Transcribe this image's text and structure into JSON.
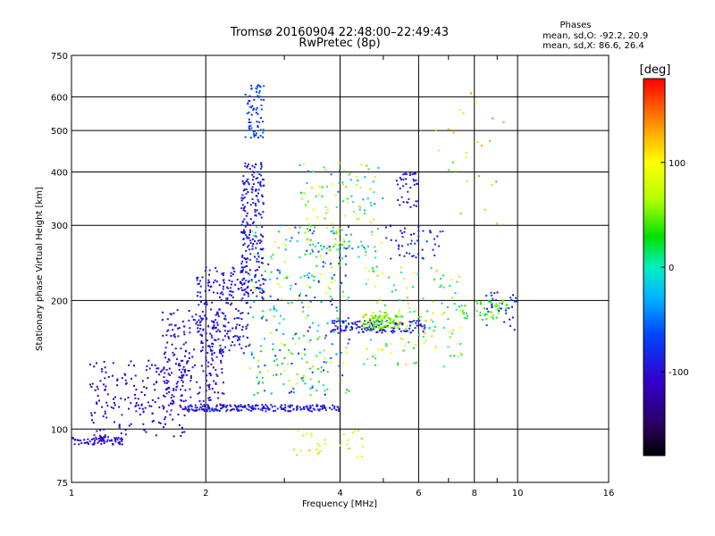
{
  "header": {
    "title_line1": "Tromsø 20160904 22:48:00–22:49:43",
    "title_line2": "RwPretec (8p)"
  },
  "stats": {
    "title": "Phases",
    "line_o": "mean, sd,O: -92.2, 20.9",
    "line_x": "mean, sd,X:  86.6, 26.4"
  },
  "colorbar": {
    "label": "[deg]",
    "range": [
      -180,
      180
    ],
    "ticks": [
      {
        "value": 100,
        "label": "100"
      },
      {
        "value": 0,
        "label": "0"
      },
      {
        "value": -100,
        "label": "-100"
      }
    ],
    "colormap": "rainbow"
  },
  "chart_data": {
    "type": "scatter",
    "title": "Tromsø 20160904 22:48:00–22:49:43",
    "subtitle": "RwPretec (8p)",
    "xlabel": "Frequency [MHz]",
    "ylabel": "Stationary phase Virtual Height [km]",
    "x_scale": "log",
    "y_scale": "log",
    "xlim": [
      1,
      16
    ],
    "ylim": [
      75,
      750
    ],
    "x_ticks": [
      {
        "value": 1,
        "label": "1"
      },
      {
        "value": 2,
        "label": "2"
      },
      {
        "value": 4,
        "label": "4"
      },
      {
        "value": 6,
        "label": "6"
      },
      {
        "value": 8,
        "label": "8"
      },
      {
        "value": 10,
        "label": "10"
      },
      {
        "value": 16,
        "label": "16"
      }
    ],
    "y_ticks": [
      {
        "value": 75,
        "label": "75"
      },
      {
        "value": 100,
        "label": "100"
      },
      {
        "value": 200,
        "label": "200"
      },
      {
        "value": 300,
        "label": "300"
      },
      {
        "value": 400,
        "label": "400"
      },
      {
        "value": 500,
        "label": "500"
      },
      {
        "value": 600,
        "label": "600"
      },
      {
        "value": 750,
        "label": "750"
      }
    ],
    "x_minor_ticks": [
      3,
      5,
      7,
      9
    ],
    "grid": true,
    "color_variable": "phase [deg]",
    "clusters": [
      {
        "f": [
          1.0,
          1.3
        ],
        "h": [
          92,
          96
        ],
        "phase": [
          -115,
          -95
        ],
        "n": 70
      },
      {
        "f": [
          1.1,
          1.8
        ],
        "h": [
          95,
          145
        ],
        "phase": [
          -125,
          -90
        ],
        "n": 190
      },
      {
        "f": [
          1.6,
          2.2
        ],
        "h": [
          110,
          190
        ],
        "phase": [
          -115,
          -85
        ],
        "n": 230
      },
      {
        "f": [
          1.9,
          2.5
        ],
        "h": [
          150,
          240
        ],
        "phase": [
          -110,
          -80
        ],
        "n": 200
      },
      {
        "f": [
          2.4,
          2.7
        ],
        "h": [
          200,
          420
        ],
        "phase": [
          -110,
          -75
        ],
        "n": 220
      },
      {
        "f": [
          2.45,
          2.7
        ],
        "h": [
          480,
          640
        ],
        "phase": [
          -100,
          -50
        ],
        "n": 70
      },
      {
        "f": [
          1.8,
          4.0
        ],
        "h": [
          110,
          114
        ],
        "phase": [
          -110,
          -70
        ],
        "n": 200
      },
      {
        "f": [
          2.5,
          4.2
        ],
        "h": [
          120,
          300
        ],
        "phase": [
          -100,
          100
        ],
        "n": 320
      },
      {
        "f": [
          3.2,
          5.0
        ],
        "h": [
          250,
          420
        ],
        "phase": [
          -60,
          120
        ],
        "n": 120
      },
      {
        "f": [
          3.8,
          6.2
        ],
        "h": [
          168,
          180
        ],
        "phase": [
          -110,
          -70
        ],
        "n": 140
      },
      {
        "f": [
          4.5,
          5.5
        ],
        "h": [
          172,
          185
        ],
        "phase": [
          20,
          90
        ],
        "n": 90
      },
      {
        "f": [
          4.5,
          7.5
        ],
        "h": [
          140,
          240
        ],
        "phase": [
          -20,
          120
        ],
        "n": 140
      },
      {
        "f": [
          5.3,
          6.0
        ],
        "h": [
          330,
          400
        ],
        "phase": [
          -110,
          -80
        ],
        "n": 40
      },
      {
        "f": [
          5.0,
          6.8
        ],
        "h": [
          250,
          300
        ],
        "phase": [
          -110,
          -60
        ],
        "n": 50
      },
      {
        "f": [
          7.5,
          9.5
        ],
        "h": [
          180,
          200
        ],
        "phase": [
          10,
          60
        ],
        "n": 50
      },
      {
        "f": [
          8.5,
          10.0
        ],
        "h": [
          170,
          210
        ],
        "phase": [
          -120,
          -60
        ],
        "n": 30
      },
      {
        "f": [
          3.0,
          4.5
        ],
        "h": [
          85,
          100
        ],
        "phase": [
          50,
          120
        ],
        "n": 30
      },
      {
        "f": [
          6.5,
          9.5
        ],
        "h": [
          300,
          620
        ],
        "phase": [
          40,
          150
        ],
        "n": 25
      }
    ]
  }
}
